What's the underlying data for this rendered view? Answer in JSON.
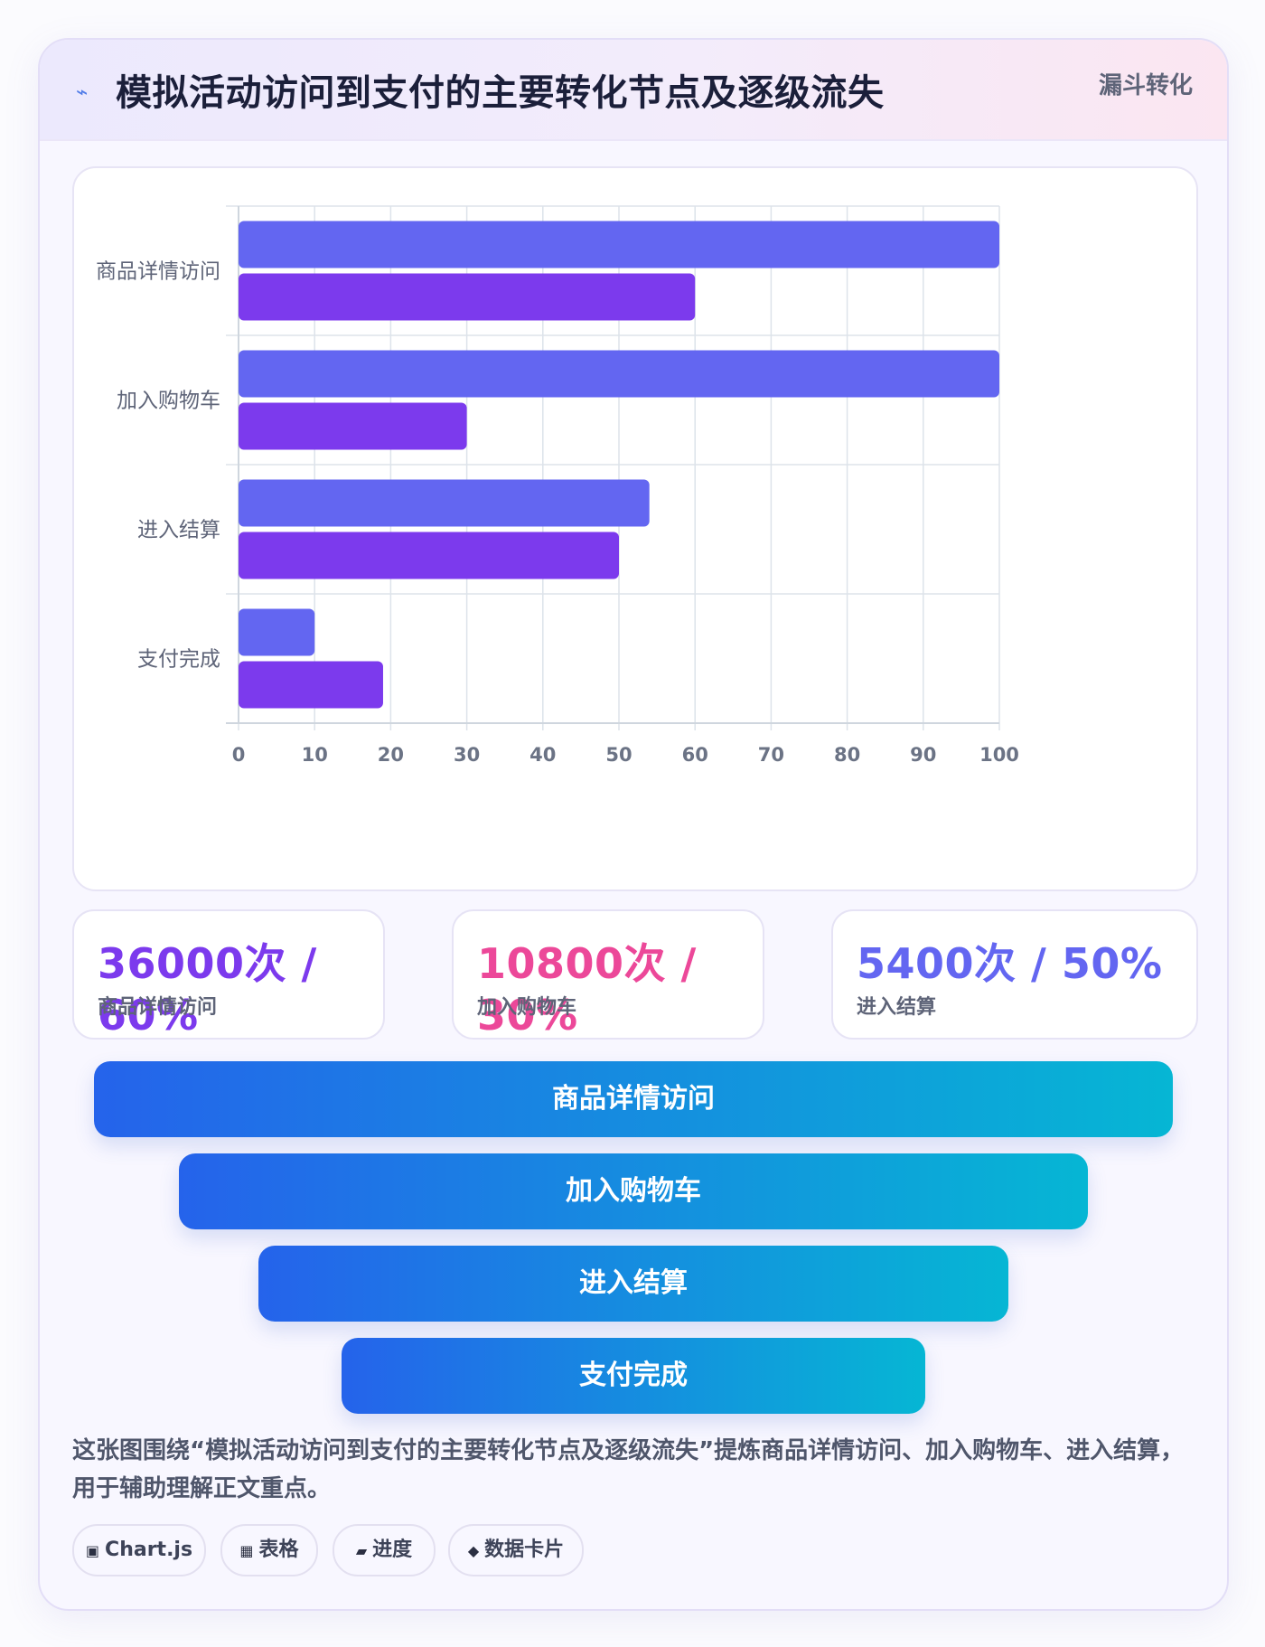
{
  "header": {
    "icon": "lightning-icon",
    "title": "模拟活动访问到支付的主要转化节点及逐级流失",
    "tag": "漏斗转化"
  },
  "chart_data": {
    "type": "bar",
    "orientation": "horizontal",
    "categories": [
      "商品详情访问",
      "加入购物车",
      "进入结算",
      "支付完成"
    ],
    "series": [
      {
        "values": [
          100,
          100,
          54,
          10
        ],
        "color": "#6366f1"
      },
      {
        "values": [
          60,
          30,
          50,
          19
        ],
        "color": "#7c3aed"
      }
    ],
    "xlim": [
      0,
      100
    ],
    "xticks": [
      0,
      10,
      20,
      30,
      40,
      50,
      60,
      70,
      80,
      90,
      100
    ],
    "grid": true,
    "legend": "none"
  },
  "stats": [
    {
      "value": "36000次 / 60%",
      "label": "商品详情访问",
      "color": "#7c3aed"
    },
    {
      "value": "10800次 / 30%",
      "label": "加入购物车",
      "color": "#ec4899"
    },
    {
      "value": "5400次 / 50%",
      "label": "进入结算",
      "color": "#6366f1"
    }
  ],
  "funnel": [
    {
      "label": "商品详情访问"
    },
    {
      "label": "加入购物车"
    },
    {
      "label": "进入结算"
    },
    {
      "label": "支付完成"
    }
  ],
  "description": "这张图围绕“模拟活动访问到支付的主要转化节点及逐级流失”提炼商品详情访问、加入购物车、进入结算，用于辅助理解正文重点。",
  "chips": [
    {
      "icon": "▣",
      "label": "Chart.js"
    },
    {
      "icon": "▦",
      "label": "表格"
    },
    {
      "icon": "▰",
      "label": "进度"
    },
    {
      "icon": "◆",
      "label": "数据卡片"
    }
  ]
}
